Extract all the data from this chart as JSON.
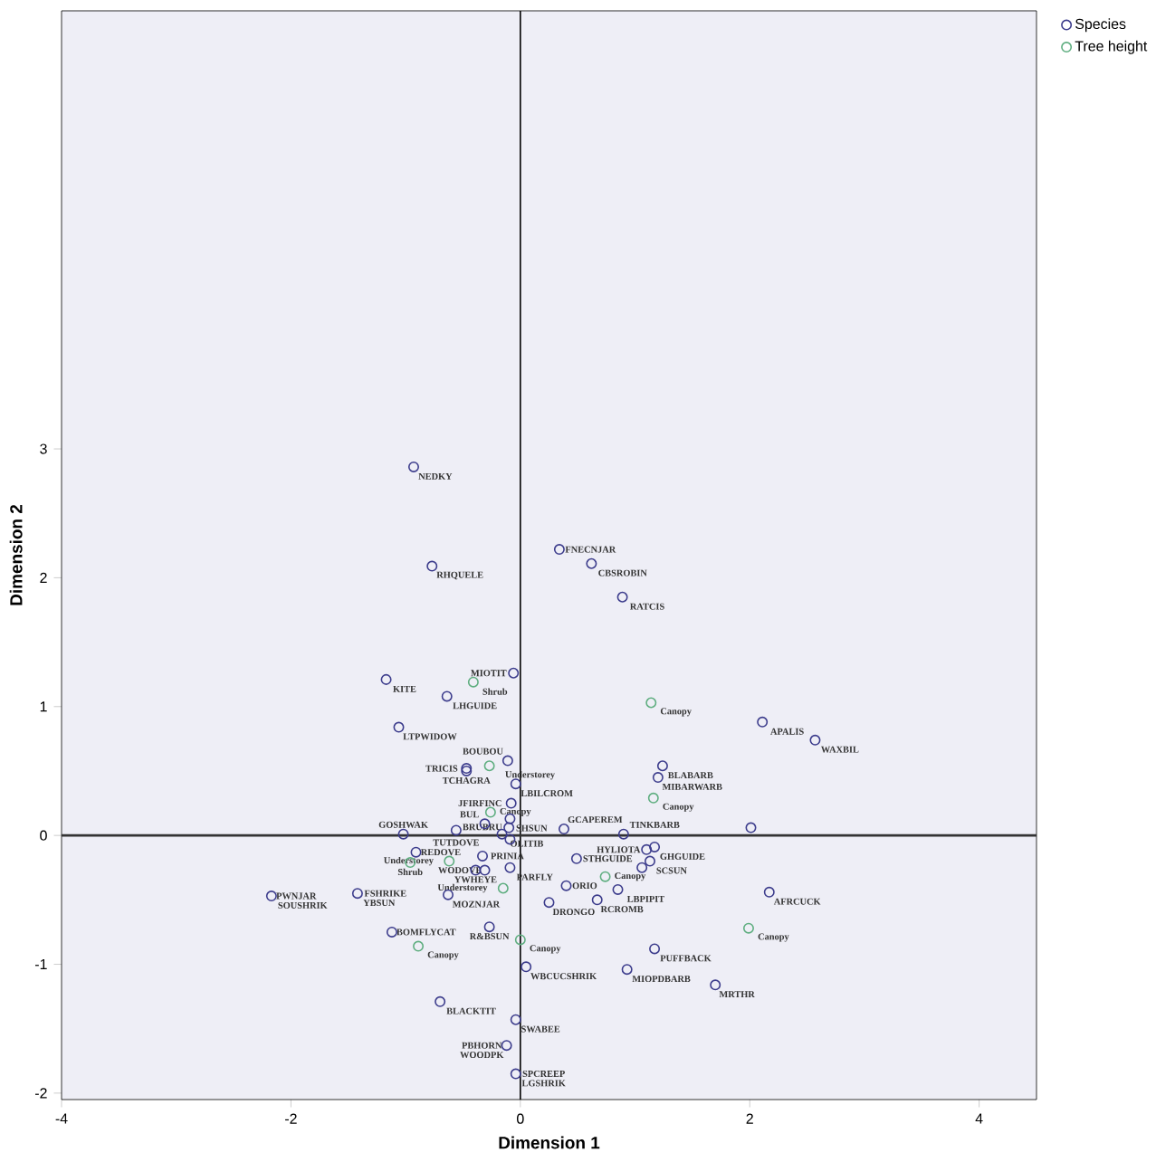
{
  "chart_data": {
    "type": "scatter",
    "xlabel": "Dimension 1",
    "ylabel": "Dimension 2",
    "xlim": [
      -4,
      4.5
    ],
    "ylim": [
      -2.05,
      6.4
    ],
    "xticks": [
      -4,
      -2,
      0,
      2,
      4
    ],
    "yticks": [
      -2,
      -1,
      0,
      1,
      2,
      3
    ],
    "marker": "circle",
    "legend": "top right",
    "series": [
      {
        "name": "Species",
        "color": "#3c3c8c",
        "x": [
          -0.93,
          -0.77,
          0.34,
          0.62,
          0.89,
          -0.06,
          -1.17,
          -0.64,
          -1.06,
          2.11,
          2.57,
          1.24,
          1.2,
          -0.11,
          -0.47,
          -0.47,
          -0.04,
          -0.08,
          0.38,
          -0.09,
          -0.1,
          -0.16,
          -0.09,
          -0.31,
          -0.56,
          -1.02,
          -0.91,
          -0.33,
          -0.39,
          -0.31,
          -0.09,
          -2.17,
          -1.42,
          -0.63,
          -0.27,
          -1.12,
          0.9,
          2.01,
          1.1,
          1.17,
          1.13,
          1.06,
          0.49,
          0.4,
          0.85,
          0.67,
          0.25,
          2.17,
          1.17,
          0.05,
          0.93,
          1.7,
          -0.7,
          -0.04,
          -0.12,
          -0.04
        ],
        "values": [
          2.86,
          2.09,
          2.22,
          2.11,
          1.85,
          1.26,
          1.21,
          1.08,
          0.84,
          0.88,
          0.74,
          0.54,
          0.45,
          0.58,
          0.5,
          0.52,
          0.4,
          0.25,
          0.05,
          0.13,
          0.06,
          0.01,
          -0.03,
          0.09,
          0.04,
          0.01,
          -0.13,
          -0.16,
          -0.27,
          -0.27,
          -0.25,
          -0.47,
          -0.45,
          -0.46,
          -0.71,
          -0.75,
          0.01,
          0.06,
          -0.11,
          -0.09,
          -0.2,
          -0.25,
          -0.18,
          -0.39,
          -0.42,
          -0.5,
          -0.52,
          -0.44,
          -0.88,
          -1.02,
          -1.04,
          -1.16,
          -1.29,
          -1.43,
          -1.63,
          -1.85
        ]
      },
      {
        "name": "Tree height",
        "color": "#5fae80",
        "x": [
          -0.41,
          1.14,
          -0.27,
          -0.26,
          1.16,
          -0.96,
          -0.62,
          -0.15,
          0.74,
          1.99,
          0.0,
          -0.89
        ],
        "values": [
          1.19,
          1.03,
          0.54,
          0.18,
          0.29,
          -0.21,
          -0.2,
          -0.41,
          -0.32,
          -0.72,
          -0.81,
          -0.86
        ]
      }
    ],
    "ref_lines": [
      {
        "axis": "x",
        "value": 0,
        "color": "#000000"
      },
      {
        "axis": "y",
        "value": 0,
        "color": "#333333"
      }
    ],
    "annotations": [
      {
        "text": "NEDKY",
        "x": -0.93,
        "y": 2.86
      },
      {
        "text": "RHQUELE",
        "x": -0.77,
        "y": 2.09
      },
      {
        "text": "FNECNJAR",
        "x": 0.34,
        "y": 2.22
      },
      {
        "text": "CBSROBIN",
        "x": 0.62,
        "y": 2.11
      },
      {
        "text": "RATCIS",
        "x": 0.89,
        "y": 1.85
      },
      {
        "text": "MIOTIT",
        "x": -0.06,
        "y": 1.26
      },
      {
        "text": "KITE",
        "x": -1.17,
        "y": 1.21
      },
      {
        "text": "LHGUIDE",
        "x": -0.64,
        "y": 1.08
      },
      {
        "text": "LTPWIDOW",
        "x": -1.06,
        "y": 0.84
      },
      {
        "text": "APALIS",
        "x": 2.11,
        "y": 0.88
      },
      {
        "text": "WAXBIL",
        "x": 2.57,
        "y": 0.74
      },
      {
        "text": "BLABARB",
        "x": 1.24,
        "y": 0.54
      },
      {
        "text": "MIBARWARB",
        "x": 1.2,
        "y": 0.45
      },
      {
        "text": "BOUBOU",
        "x": -0.11,
        "y": 0.58
      },
      {
        "text": "TCHAGRA",
        "x": -0.47,
        "y": 0.5
      },
      {
        "text": "TRICIS",
        "x": -0.47,
        "y": 0.52
      },
      {
        "text": "BUL",
        "x": -0.31,
        "y": 0.09
      },
      {
        "text": "LBILCROM",
        "x": -0.04,
        "y": 0.4
      },
      {
        "text": "JFIRFINC",
        "x": -0.08,
        "y": 0.25
      },
      {
        "text": "GOSHWAK",
        "x": -1.02,
        "y": 0.01
      },
      {
        "text": "TUTDOVE",
        "x": -0.56,
        "y": 0.04
      },
      {
        "text": "SHSUN",
        "x": -0.09,
        "y": 0.13
      },
      {
        "text": "TINKBARB",
        "x": 0.9,
        "y": 0.01
      },
      {
        "text": "HYLIOTA",
        "x": 1.1,
        "y": -0.11
      },
      {
        "text": "PRINIA",
        "x": -0.33,
        "y": -0.16
      },
      {
        "text": "OLITIB",
        "x": -0.16,
        "y": 0.01
      },
      {
        "text": "BRUBRU",
        "x": -0.09,
        "y": -0.03
      },
      {
        "text": "GCAPEREM",
        "x": 0.38,
        "y": 0.05
      },
      {
        "text": "STHGUIDE",
        "x": 0.49,
        "y": -0.18
      },
      {
        "text": "GHGUIDE",
        "x": 1.17,
        "y": -0.09
      },
      {
        "text": "SCSUN",
        "x": 1.13,
        "y": -0.2
      },
      {
        "text": "PARFLY",
        "x": -0.09,
        "y": -0.25
      },
      {
        "text": "SOUSHRIK",
        "x": -2.17,
        "y": -0.47
      },
      {
        "text": "PWNJAR",
        "x": -2.17,
        "y": -0.47
      },
      {
        "text": "YBSUN",
        "x": -1.42,
        "y": -0.45
      },
      {
        "text": "FSHRIKE",
        "x": -1.42,
        "y": -0.45
      },
      {
        "text": "MOZNJAR",
        "x": -0.63,
        "y": -0.46
      },
      {
        "text": "YWHEYE",
        "x": -0.39,
        "y": -0.27
      },
      {
        "text": "WODOVE",
        "x": -0.31,
        "y": -0.27
      },
      {
        "text": "DRONGO",
        "x": 0.25,
        "y": -0.52
      },
      {
        "text": "LBPIPIT",
        "x": 0.85,
        "y": -0.42
      },
      {
        "text": "ORIO",
        "x": 0.4,
        "y": -0.39
      },
      {
        "text": "RCROMB",
        "x": 0.67,
        "y": -0.5
      },
      {
        "text": "AFRCUCK",
        "x": 2.17,
        "y": -0.44
      },
      {
        "text": "REDOVE",
        "x": -0.91,
        "y": -0.13
      },
      {
        "text": "R&BSUN",
        "x": -0.27,
        "y": -0.71
      },
      {
        "text": "BOMFLYCAT",
        "x": -1.12,
        "y": -0.75
      },
      {
        "text": "PUFFBACK",
        "x": 1.17,
        "y": -0.88
      },
      {
        "text": "WBCUCSHRIK",
        "x": 0.05,
        "y": -1.02
      },
      {
        "text": "MIOPDBARB",
        "x": 0.93,
        "y": -1.04
      },
      {
        "text": "MRTHR",
        "x": 1.7,
        "y": -1.16
      },
      {
        "text": "BLACKTIT",
        "x": -0.7,
        "y": -1.29
      },
      {
        "text": "SWABEE",
        "x": -0.04,
        "y": -1.43
      },
      {
        "text": "WOODPK",
        "x": -0.12,
        "y": -1.63
      },
      {
        "text": "LGSHRIK",
        "x": -0.04,
        "y": -1.85
      },
      {
        "text": "PBHORN",
        "x": -0.12,
        "y": -1.63
      },
      {
        "text": "SPCREEP",
        "x": -0.04,
        "y": -1.85
      },
      {
        "text": "Shrub",
        "x": -0.41,
        "y": 1.19
      },
      {
        "text": "Canopy",
        "x": 1.14,
        "y": 1.03
      },
      {
        "text": "Understorey",
        "x": -0.27,
        "y": 0.54
      },
      {
        "text": "Canopy",
        "x": -0.26,
        "y": 0.18
      },
      {
        "text": "Canopy",
        "x": 1.16,
        "y": 0.29
      },
      {
        "text": "Shrub",
        "x": -0.96,
        "y": -0.21
      },
      {
        "text": "Understorey",
        "x": -0.62,
        "y": -0.2
      },
      {
        "text": "Canopy",
        "x": 0.74,
        "y": -0.32
      },
      {
        "text": "Understorey",
        "x": -0.15,
        "y": -0.41
      },
      {
        "text": "Canopy",
        "x": 1.99,
        "y": -0.72
      },
      {
        "text": "Canopy",
        "x": 0.0,
        "y": -0.81
      },
      {
        "text": "Canopy",
        "x": -0.89,
        "y": -0.86
      }
    ]
  }
}
